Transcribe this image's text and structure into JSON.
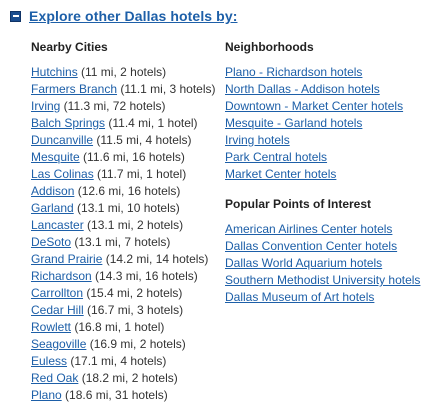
{
  "header": {
    "title": "Explore other Dallas hotels by:"
  },
  "nearby": {
    "heading": "Nearby Cities",
    "items": [
      {
        "name": "Hutchins",
        "meta": " (11 mi, 2 hotels)"
      },
      {
        "name": "Farmers Branch",
        "meta": " (11.1 mi, 3 hotels)"
      },
      {
        "name": "Irving",
        "meta": " (11.3 mi, 72 hotels)"
      },
      {
        "name": "Balch Springs",
        "meta": " (11.4 mi, 1 hotel)"
      },
      {
        "name": "Duncanville",
        "meta": " (11.5 mi, 4 hotels)"
      },
      {
        "name": "Mesquite",
        "meta": " (11.6 mi, 16 hotels)"
      },
      {
        "name": "Las Colinas",
        "meta": " (11.7 mi, 1 hotel)"
      },
      {
        "name": "Addison",
        "meta": " (12.6 mi, 16 hotels)"
      },
      {
        "name": "Garland",
        "meta": " (13.1 mi, 10 hotels)"
      },
      {
        "name": "Lancaster",
        "meta": " (13.1 mi, 2 hotels)"
      },
      {
        "name": "DeSoto",
        "meta": " (13.1 mi, 7 hotels)"
      },
      {
        "name": "Grand Prairie",
        "meta": " (14.2 mi, 14 hotels)"
      },
      {
        "name": "Richardson",
        "meta": " (14.3 mi, 16 hotels)"
      },
      {
        "name": "Carrollton",
        "meta": " (15.4 mi, 2 hotels)"
      },
      {
        "name": "Cedar Hill",
        "meta": " (16.7 mi, 3 hotels)"
      },
      {
        "name": "Rowlett",
        "meta": " (16.8 mi, 1 hotel)"
      },
      {
        "name": "Seagoville",
        "meta": " (16.9 mi, 2 hotels)"
      },
      {
        "name": "Euless",
        "meta": " (17.1 mi, 4 hotels)"
      },
      {
        "name": "Red Oak",
        "meta": " (18.2 mi, 2 hotels)"
      },
      {
        "name": "Plano",
        "meta": " (18.6 mi, 31 hotels)"
      }
    ]
  },
  "neighborhoods": {
    "heading": "Neighborhoods",
    "items": [
      "Plano - Richardson hotels",
      "North Dallas - Addison hotels",
      "Downtown - Market Center hotels",
      "Mesquite - Garland hotels",
      "Irving hotels",
      "Park Central hotels",
      "Market Center hotels"
    ]
  },
  "poi": {
    "heading": "Popular Points of Interest",
    "items": [
      "American Airlines Center hotels",
      "Dallas Convention Center hotels",
      "Dallas World Aquarium hotels",
      "Southern Methodist University hotels",
      "Dallas Museum of Art hotels"
    ]
  },
  "icons": {
    "toggle": "collapse-minus-icon"
  },
  "colors": {
    "link": "#1d5fa8",
    "toggle_bg": "#1a4d8f",
    "text": "#333333"
  }
}
